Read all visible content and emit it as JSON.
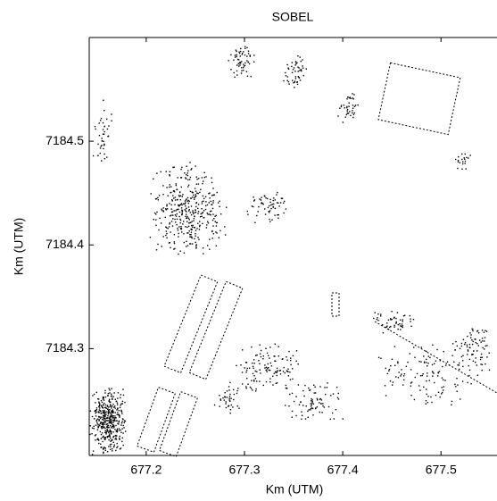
{
  "chart_data": {
    "type": "image",
    "title": "SOBEL",
    "xlabel": "Km (UTM)",
    "ylabel": "Km (UTM)",
    "xlim": [
      677.142,
      677.557
    ],
    "xticks": [
      677.2,
      677.3,
      677.4,
      677.5
    ],
    "ylim": [
      7184.197,
      7184.6
    ],
    "yticks": [
      7184.3,
      7184.4,
      7184.5
    ]
  }
}
